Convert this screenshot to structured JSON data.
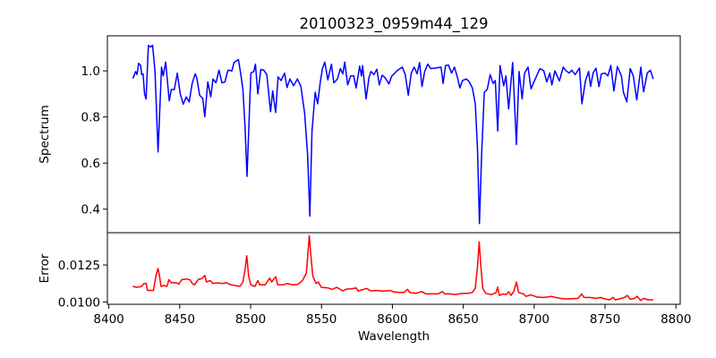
{
  "chart_data": [
    {
      "type": "line",
      "panel": "top",
      "title": "20100323_0959m44_129",
      "xlabel": "",
      "ylabel": "Spectrum",
      "xlim": [
        8399,
        8803
      ],
      "ylim": [
        0.298,
        1.152
      ],
      "yticks": [
        0.4,
        0.6,
        0.8,
        1.0
      ],
      "ytick_labels": [
        "0.4",
        "0.6",
        "0.8",
        "1.0"
      ],
      "grid": false,
      "series": [
        {
          "name": "Spectrum",
          "color": "#0000ff",
          "x": [
            8417.0,
            8418.9,
            8419.9,
            8421.0,
            8422.5,
            8423.1,
            8424.2,
            8425.2,
            8426.3,
            8427.9,
            8429.4,
            8430.9,
            8432.6,
            8434.7,
            8437.2,
            8438.4,
            8440.1,
            8442.6,
            8444.1,
            8446.2,
            8448.3,
            8450.4,
            8452.5,
            8454.6,
            8456.7,
            8458.8,
            8460.9,
            8462.0,
            8464.1,
            8466.2,
            8467.7,
            8469.8,
            8471.9,
            8473.5,
            8475.6,
            8477.7,
            8479.8,
            8481.9,
            8484.0,
            8486.8,
            8488.3,
            8491.4,
            8493.1,
            8494.6,
            8496.0,
            8497.5,
            8498.8,
            8500.2,
            8502.3,
            8503.4,
            8505.1,
            8507.2,
            8509.3,
            8511.4,
            8514.1,
            8515.6,
            8517.7,
            8519.4,
            8521.5,
            8524.0,
            8525.7,
            8527.8,
            8530.3,
            8533.0,
            8535.5,
            8538.1,
            8540.2,
            8541.8,
            8543.3,
            8545.6,
            8547.3,
            8549.2,
            8550.7,
            8552.3,
            8554.5,
            8557.0,
            8558.7,
            8561.2,
            8563.3,
            8565.0,
            8566.4,
            8568.5,
            8570.6,
            8572.7,
            8574.4,
            8576.9,
            8578.2,
            8579.0,
            8581.4,
            8583.5,
            8584.9,
            8587.0,
            8589.1,
            8590.8,
            8592.7,
            8594.8,
            8597.5,
            8599.6,
            8600.7,
            8603.8,
            8607.0,
            8609.1,
            8611.2,
            8613.3,
            8615.4,
            8617.5,
            8619.2,
            8620.9,
            8622.8,
            8624.9,
            8627.0,
            8630.1,
            8634.3,
            8635.8,
            8637.5,
            8639.6,
            8641.7,
            8643.8,
            8645.9,
            8647.6,
            8649.4,
            8652.2,
            8654.3,
            8656.4,
            8658.5,
            8660.0,
            8661.4,
            8662.9,
            8664.8,
            8666.9,
            8669.0,
            8671.1,
            8672.6,
            8674.3,
            8675.9,
            8678.5,
            8680.1,
            8682.0,
            8684.8,
            8687.5,
            8689.4,
            8691.5,
            8693.2,
            8695.7,
            8697.8,
            8700.5,
            8704.1,
            8706.8,
            8708.9,
            8711.0,
            8712.5,
            8714.6,
            8717.8,
            8720.5,
            8722.6,
            8724.7,
            8726.4,
            8728.9,
            8732.0,
            8733.7,
            8736.2,
            8738.4,
            8739.8,
            8741.5,
            8743.6,
            8745.7,
            8747.4,
            8749.9,
            8752.0,
            8754.1,
            8756.2,
            8758.7,
            8761.5,
            8763.0,
            8765.3,
            8767.8,
            8769.9,
            8772.4,
            8775.2,
            8777.2,
            8779.8,
            8781.9,
            8784.0
          ],
          "y": [
            0.967,
            0.997,
            0.984,
            1.033,
            1.023,
            0.984,
            0.987,
            0.9,
            0.878,
            1.111,
            1.103,
            1.111,
            0.997,
            0.648,
            1.016,
            0.978,
            1.038,
            0.87,
            0.919,
            0.919,
            0.99,
            0.9,
            0.855,
            0.887,
            0.865,
            0.945,
            0.987,
            0.971,
            0.894,
            0.881,
            0.801,
            0.952,
            0.887,
            0.965,
            0.948,
            1.003,
            0.948,
            0.952,
            1.003,
            1.0,
            1.036,
            1.049,
            0.984,
            0.919,
            0.764,
            0.542,
            0.764,
            0.99,
            0.997,
            1.029,
            0.9,
            1.006,
            1.003,
            0.984,
            0.823,
            0.913,
            0.819,
            0.974,
            0.958,
            0.99,
            0.928,
            0.965,
            0.935,
            0.965,
            0.932,
            0.816,
            0.635,
            0.37,
            0.739,
            0.907,
            0.857,
            0.952,
            1.01,
            1.038,
            0.961,
            1.029,
            0.948,
            0.965,
            1.01,
            0.987,
            1.038,
            0.939,
            0.978,
            0.978,
            0.926,
            1.02,
            0.978,
            1.023,
            0.878,
            0.971,
            0.997,
            0.984,
            1.007,
            0.939,
            0.981,
            0.971,
            0.943,
            0.978,
            0.984,
            1.003,
            1.016,
            0.984,
            0.894,
            0.99,
            1.016,
            0.987,
            1.036,
            0.932,
            0.997,
            1.029,
            1.01,
            1.012,
            1.016,
            0.945,
            1.023,
            1.025,
            0.99,
            1.016,
            0.971,
            0.926,
            0.958,
            0.965,
            0.952,
            0.926,
            0.855,
            0.661,
            0.338,
            0.635,
            0.907,
            0.919,
            0.984,
            0.945,
            0.958,
            0.739,
            1.023,
            0.935,
            0.978,
            0.835,
            1.036,
            0.68,
            0.997,
            0.878,
            0.99,
            1.016,
            0.922,
            0.961,
            1.01,
            1.0,
            0.952,
            0.99,
            0.939,
            1.0,
            0.956,
            1.016,
            1.0,
            0.99,
            1.003,
            0.984,
            1.012,
            0.857,
            0.958,
            0.997,
            0.932,
            0.99,
            1.012,
            0.932,
            0.987,
            0.99,
            0.978,
            1.023,
            0.913,
            1.019,
            0.978,
            0.907,
            0.865,
            1.01,
            0.978,
            0.874,
            1.016,
            0.909,
            0.99,
            1.003,
            0.965
          ]
        }
      ]
    },
    {
      "type": "line",
      "panel": "bottom",
      "xlabel": "Wavelength",
      "ylabel": "Error",
      "xlim": [
        8399,
        8803
      ],
      "ylim": [
        0.00984,
        0.01468
      ],
      "xticks": [
        8400,
        8450,
        8500,
        8550,
        8600,
        8650,
        8700,
        8750,
        8800
      ],
      "xtick_labels": [
        "8400",
        "8450",
        "8500",
        "8550",
        "8600",
        "8650",
        "8700",
        "8750",
        "8800"
      ],
      "yticks": [
        0.01,
        0.0125
      ],
      "ytick_labels": [
        "0.0100",
        "0.0125"
      ],
      "grid": false,
      "series": [
        {
          "name": "Error",
          "color": "#ff0000",
          "x": [
            8416.8,
            8419.9,
            8423.1,
            8424.8,
            8426.3,
            8427.3,
            8431.5,
            8433.2,
            8434.7,
            8435.9,
            8436.8,
            8438.9,
            8441.0,
            8442.4,
            8444.1,
            8447.3,
            8449.4,
            8451.5,
            8454.6,
            8457.4,
            8458.8,
            8460.5,
            8463.0,
            8465.8,
            8467.7,
            8468.9,
            8471.4,
            8473.5,
            8476.7,
            8479.8,
            8483.0,
            8486.1,
            8489.3,
            8492.5,
            8494.6,
            8496.0,
            8497.3,
            8498.6,
            8500.2,
            8503.0,
            8505.1,
            8506.5,
            8510.3,
            8513.5,
            8514.9,
            8517.7,
            8519.2,
            8522.9,
            8526.1,
            8529.2,
            8533.4,
            8536.6,
            8539.3,
            8540.4,
            8541.4,
            8542.5,
            8543.9,
            8546.1,
            8547.7,
            8549.8,
            8554.5,
            8557.6,
            8560.8,
            8565.0,
            8567.1,
            8571.3,
            8574.4,
            8575.9,
            8579.7,
            8581.8,
            8584.9,
            8588.1,
            8592.3,
            8595.4,
            8598.6,
            8600.7,
            8604.9,
            8608.0,
            8610.8,
            8612.2,
            8616.5,
            8620.7,
            8623.8,
            8628.0,
            8632.2,
            8635.4,
            8636.8,
            8640.6,
            8644.8,
            8649.0,
            8653.2,
            8656.4,
            8658.5,
            8660.0,
            8661.2,
            8662.3,
            8663.7,
            8665.8,
            8670.1,
            8673.2,
            8674.2,
            8675.5,
            8678.0,
            8680.1,
            8682.0,
            8683.7,
            8685.8,
            8687.5,
            8689.0,
            8691.1,
            8692.5,
            8694.2,
            8697.8,
            8701.6,
            8705.8,
            8710.0,
            8712.1,
            8715.2,
            8718.4,
            8722.6,
            8726.8,
            8731.0,
            8733.5,
            8735.2,
            8739.4,
            8743.6,
            8746.8,
            8749.9,
            8753.1,
            8755.6,
            8757.3,
            8761.5,
            8763.6,
            8765.7,
            8767.8,
            8770.9,
            8772.6,
            8775.1,
            8777.2,
            8780.4,
            8784.0
          ],
          "y": [
            0.01105,
            0.01099,
            0.01105,
            0.01125,
            0.01125,
            0.01078,
            0.01078,
            0.01175,
            0.01226,
            0.01165,
            0.01105,
            0.01111,
            0.01105,
            0.01151,
            0.01129,
            0.01131,
            0.01121,
            0.01151,
            0.01155,
            0.01149,
            0.01125,
            0.01115,
            0.01151,
            0.01159,
            0.01179,
            0.01135,
            0.01145,
            0.01125,
            0.01129,
            0.01125,
            0.01129,
            0.01115,
            0.01111,
            0.01105,
            0.01135,
            0.01216,
            0.01312,
            0.01175,
            0.01115,
            0.01105,
            0.01145,
            0.01115,
            0.01115,
            0.01161,
            0.01135,
            0.01171,
            0.01115,
            0.01115,
            0.01125,
            0.01115,
            0.01119,
            0.01145,
            0.01195,
            0.01327,
            0.01448,
            0.01316,
            0.01175,
            0.01125,
            0.01135,
            0.01099,
            0.01095,
            0.01085,
            0.01099,
            0.01074,
            0.01085,
            0.01089,
            0.01095,
            0.01074,
            0.01085,
            0.01091,
            0.01074,
            0.01078,
            0.01074,
            0.01074,
            0.01078,
            0.01068,
            0.01064,
            0.01064,
            0.01085,
            0.01064,
            0.01058,
            0.0107,
            0.01054,
            0.01054,
            0.01054,
            0.0107,
            0.01054,
            0.01054,
            0.0105,
            0.01058,
            0.01058,
            0.01064,
            0.01095,
            0.01236,
            0.01407,
            0.01256,
            0.01095,
            0.01058,
            0.0105,
            0.01064,
            0.01101,
            0.01044,
            0.01054,
            0.0105,
            0.01068,
            0.01044,
            0.01074,
            0.01135,
            0.01064,
            0.01058,
            0.01054,
            0.01038,
            0.01048,
            0.01034,
            0.0103,
            0.01034,
            0.01038,
            0.0103,
            0.01024,
            0.0102,
            0.01022,
            0.01024,
            0.01054,
            0.0103,
            0.0103,
            0.01024,
            0.0103,
            0.0102,
            0.01014,
            0.0103,
            0.01014,
            0.01024,
            0.0103,
            0.01044,
            0.01018,
            0.01024,
            0.01038,
            0.0101,
            0.01024,
            0.01014,
            0.01014
          ]
        }
      ]
    }
  ]
}
